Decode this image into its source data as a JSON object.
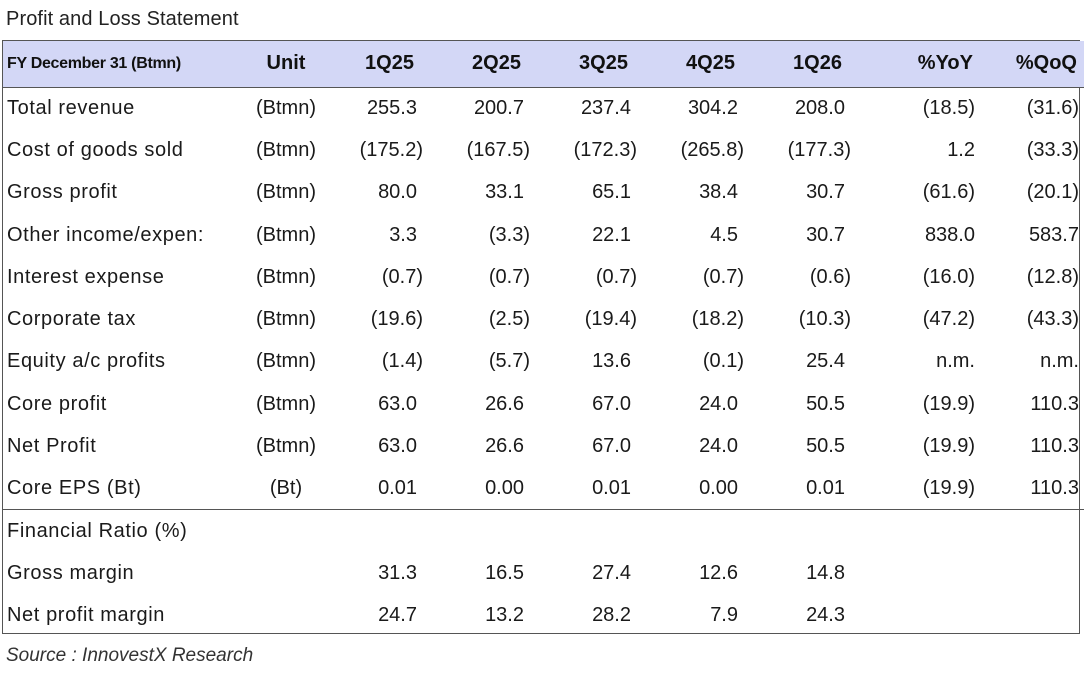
{
  "title": "Profit and Loss Statement",
  "source": "Source : InnovestX Research",
  "headers": {
    "label": "FY December 31 (Btmn)",
    "unit": "Unit",
    "q1": "1Q25",
    "q2": "2Q25",
    "q3": "3Q25",
    "q4": "4Q25",
    "q5": "1Q26",
    "yoy": "%YoY",
    "qoq": "%QoQ"
  },
  "rows": [
    {
      "label": "Total revenue",
      "unit": "(Btmn)",
      "v": [
        "255.3",
        "200.7",
        "237.4",
        "304.2",
        "208.0",
        "(18.5)",
        "(31.6)"
      ]
    },
    {
      "label": "Cost of goods sold",
      "unit": "(Btmn)",
      "v": [
        "(175.2)",
        "(167.5)",
        "(172.3)",
        "(265.8)",
        "(177.3)",
        "1.2",
        "(33.3)"
      ]
    },
    {
      "label": "Gross profit",
      "unit": "(Btmn)",
      "v": [
        "80.0",
        "33.1",
        "65.1",
        "38.4",
        "30.7",
        "(61.6)",
        "(20.1)"
      ]
    },
    {
      "label": "Other income/expen:",
      "unit": "(Btmn)",
      "v": [
        "3.3",
        "(3.3)",
        "22.1",
        "4.5",
        "30.7",
        "838.0",
        "583.7"
      ]
    },
    {
      "label": "Interest expense",
      "unit": "(Btmn)",
      "v": [
        "(0.7)",
        "(0.7)",
        "(0.7)",
        "(0.7)",
        "(0.6)",
        "(16.0)",
        "(12.8)"
      ]
    },
    {
      "label": "Corporate tax",
      "unit": "(Btmn)",
      "v": [
        "(19.6)",
        "(2.5)",
        "(19.4)",
        "(18.2)",
        "(10.3)",
        "(47.2)",
        "(43.3)"
      ]
    },
    {
      "label": "Equity a/c profits",
      "unit": "(Btmn)",
      "v": [
        "(1.4)",
        "(5.7)",
        "13.6",
        "(0.1)",
        "25.4",
        "n.m.",
        "n.m."
      ]
    },
    {
      "label": "Core profit",
      "unit": "(Btmn)",
      "v": [
        "63.0",
        "26.6",
        "67.0",
        "24.0",
        "50.5",
        "(19.9)",
        "110.3"
      ]
    },
    {
      "label": "Net Profit",
      "unit": "(Btmn)",
      "v": [
        "63.0",
        "26.6",
        "67.0",
        "24.0",
        "50.5",
        "(19.9)",
        "110.3"
      ]
    },
    {
      "label": "Core EPS (Bt)",
      "unit": "(Bt)",
      "v": [
        "0.01",
        "0.00",
        "0.01",
        "0.00",
        "0.01",
        "(19.9)",
        "110.3"
      ]
    }
  ],
  "ratio_section": {
    "heading": "Financial Ratio (%)",
    "rows": [
      {
        "label": "Gross margin",
        "v": [
          "31.3",
          "16.5",
          "27.4",
          "12.6",
          "14.8"
        ]
      },
      {
        "label": "Net profit margin",
        "v": [
          "24.7",
          "13.2",
          "28.2",
          "7.9",
          "24.3"
        ]
      }
    ]
  }
}
